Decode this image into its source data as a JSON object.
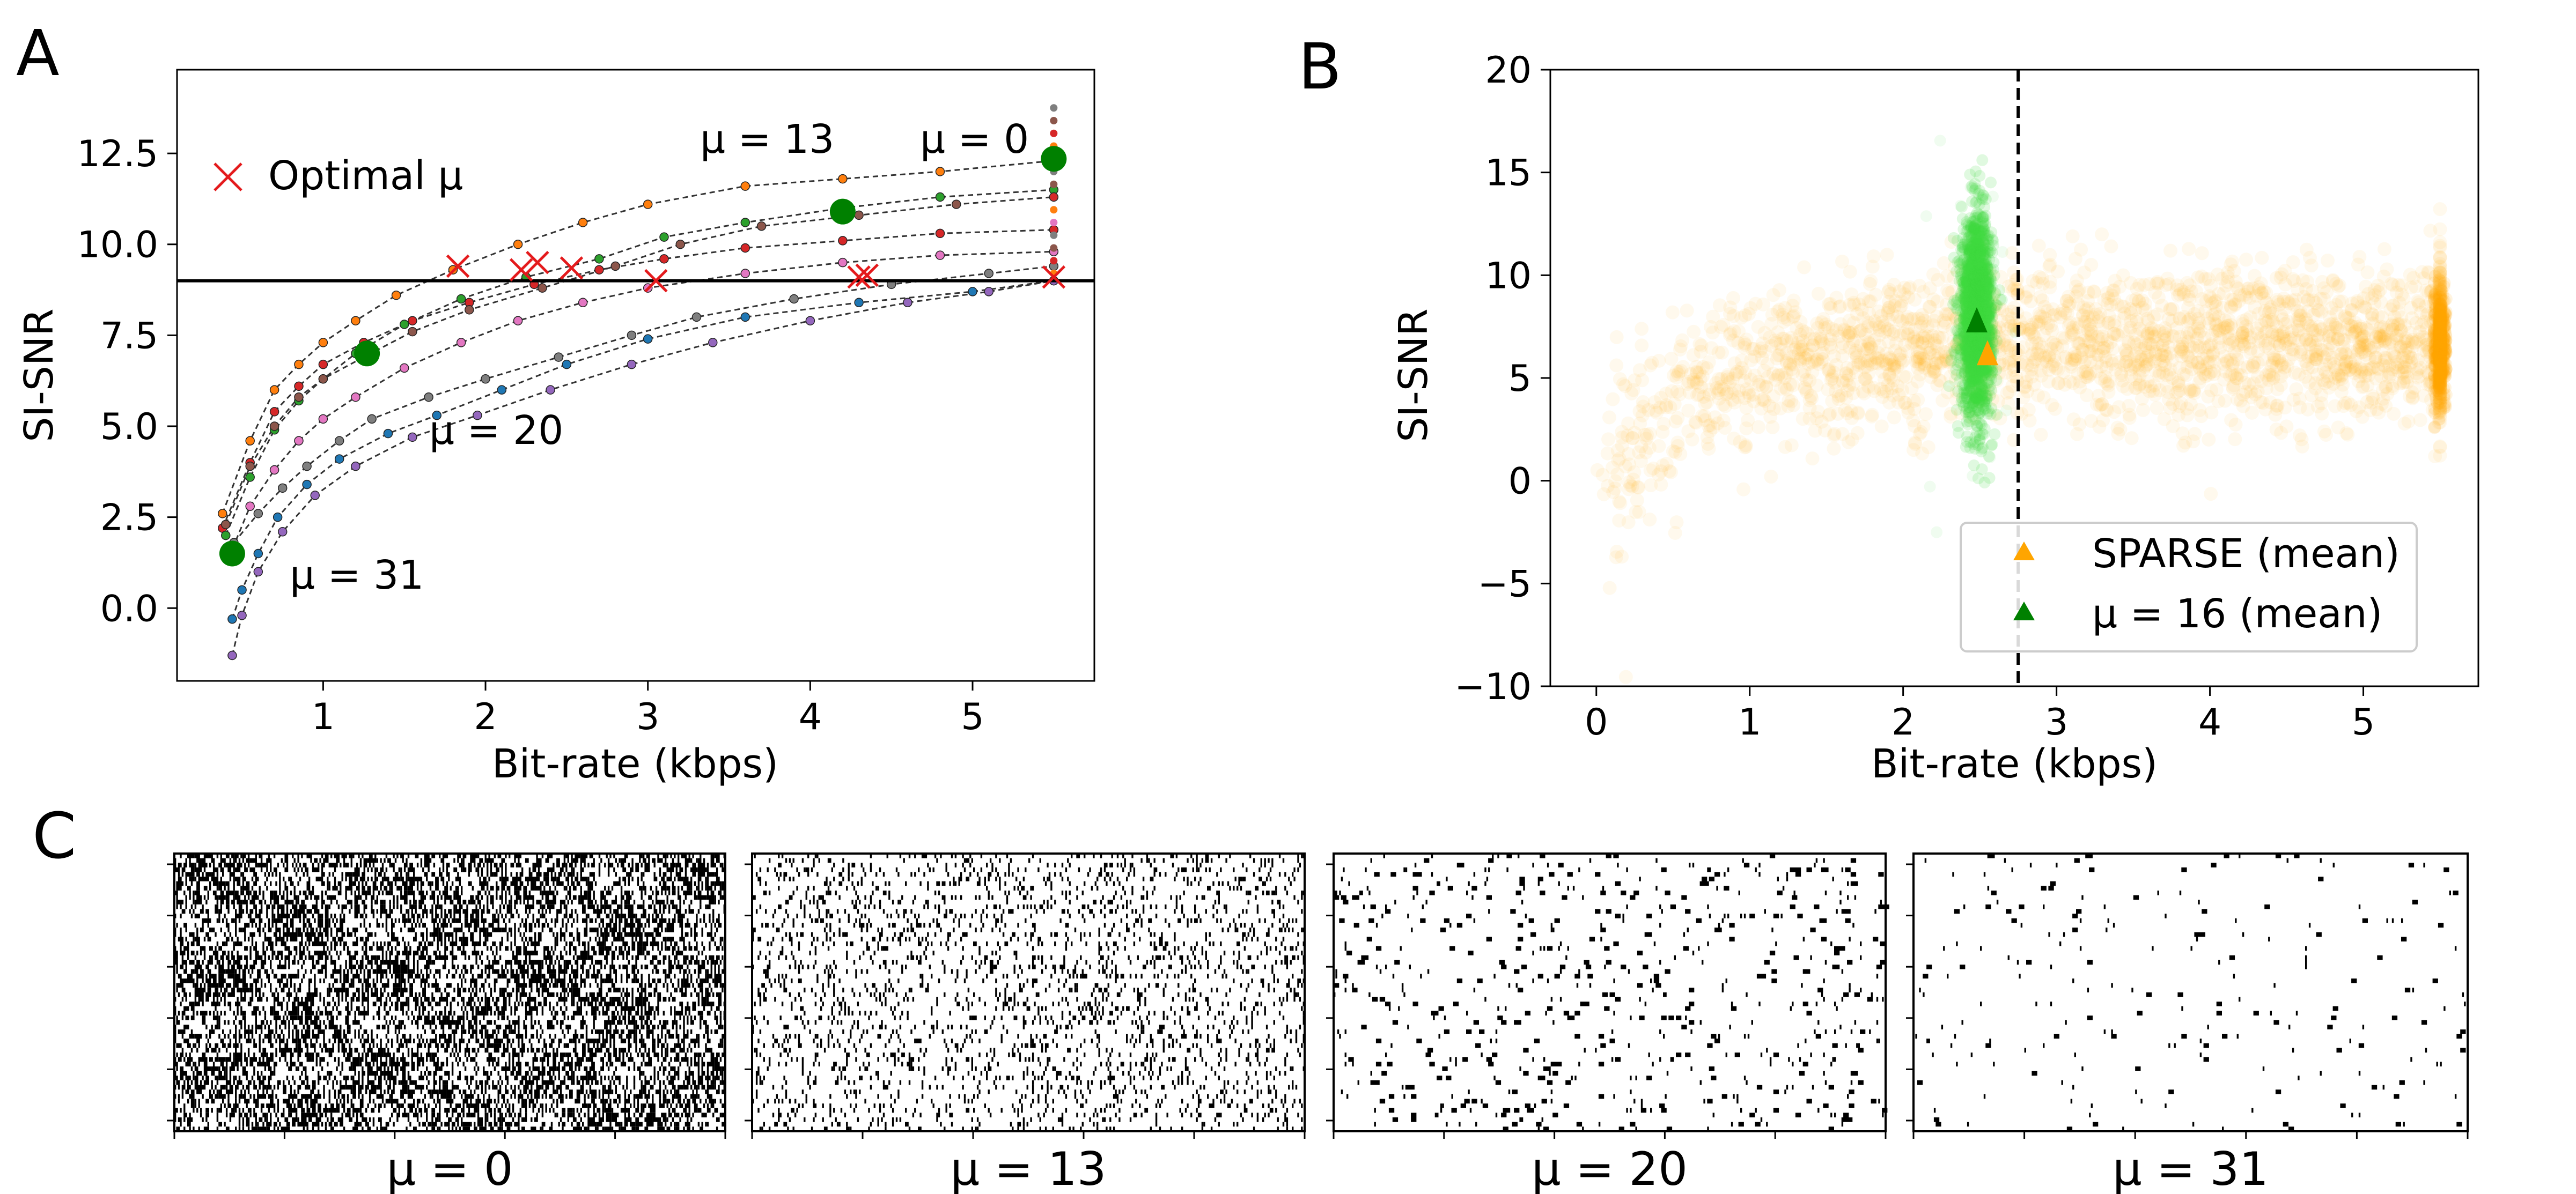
{
  "chart_data": [
    {
      "panel": "A",
      "type": "line",
      "xlabel": "Bit-rate (kbps)",
      "ylabel": "SI-SNR",
      "xlim": [
        0.1,
        5.75
      ],
      "ylim": [
        -2.0,
        14.8
      ],
      "xticks": [
        1,
        2,
        3,
        4,
        5
      ],
      "yticks": [
        0.0,
        2.5,
        5.0,
        7.5,
        10.0,
        12.5
      ],
      "ytick_labels": [
        "0.0",
        "2.5",
        "5.0",
        "7.5",
        "10.0",
        "12.5"
      ],
      "threshold_line": 9.0,
      "legend": {
        "entries": [
          "Optimal μ"
        ],
        "placement": "upper-left"
      },
      "annotations": [
        {
          "text": "μ = 13",
          "x": 3.3,
          "y": 12.6
        },
        {
          "text": "μ = 0",
          "x": 4.6,
          "y": 12.6
        },
        {
          "text": "μ = 20",
          "x": 1.65,
          "y": 4.5
        },
        {
          "text": "μ = 31",
          "x": 0.8,
          "y": 0.7
        }
      ],
      "series": [
        {
          "color": "#ff7f0e",
          "x": [
            0.38,
            0.55,
            0.7,
            0.85,
            1.0,
            1.2,
            1.45,
            1.8,
            2.2,
            2.6,
            3.0,
            3.6,
            4.2,
            4.8,
            5.5
          ],
          "y": [
            2.6,
            4.6,
            6.0,
            6.7,
            7.3,
            7.9,
            8.6,
            9.3,
            10.0,
            10.6,
            11.1,
            11.6,
            11.8,
            12.0,
            12.3
          ]
        },
        {
          "color": "#d62728",
          "x": [
            0.38,
            0.55,
            0.7,
            0.85,
            1.0,
            1.25,
            1.55,
            1.9,
            2.3,
            2.7,
            3.1,
            3.6,
            4.2,
            4.8,
            5.5
          ],
          "y": [
            2.2,
            4.0,
            5.4,
            6.1,
            6.7,
            7.3,
            7.9,
            8.4,
            8.9,
            9.3,
            9.6,
            9.9,
            10.1,
            10.3,
            10.4
          ]
        },
        {
          "color": "#2ca02c",
          "x": [
            0.4,
            0.55,
            0.7,
            0.85,
            1.0,
            1.2,
            1.5,
            1.85,
            2.25,
            2.7,
            3.1,
            3.6,
            4.2,
            4.8,
            5.5
          ],
          "y": [
            2.0,
            3.6,
            4.9,
            5.7,
            6.3,
            7.0,
            7.8,
            8.5,
            9.1,
            9.6,
            10.2,
            10.6,
            11.0,
            11.3,
            11.5
          ]
        },
        {
          "color": "#e377c2",
          "x": [
            0.42,
            0.55,
            0.7,
            0.85,
            1.0,
            1.2,
            1.5,
            1.85,
            2.2,
            2.6,
            3.0,
            3.6,
            4.2,
            4.8,
            5.5
          ],
          "y": [
            1.4,
            2.8,
            3.8,
            4.6,
            5.2,
            5.8,
            6.6,
            7.3,
            7.9,
            8.4,
            8.8,
            9.2,
            9.5,
            9.7,
            9.8
          ]
        },
        {
          "color": "#7f7f7f",
          "x": [
            0.45,
            0.6,
            0.75,
            0.9,
            1.1,
            1.3,
            1.65,
            2.0,
            2.45,
            2.9,
            3.3,
            3.9,
            4.5,
            5.1,
            5.5
          ],
          "y": [
            1.8,
            2.6,
            3.3,
            3.9,
            4.6,
            5.2,
            5.8,
            6.3,
            6.9,
            7.5,
            8.0,
            8.5,
            8.9,
            9.2,
            9.4
          ]
        },
        {
          "color": "#1f77b4",
          "x": [
            0.44,
            0.5,
            0.6,
            0.72,
            0.9,
            1.1,
            1.4,
            1.7,
            2.1,
            2.5,
            3.0,
            3.6,
            4.3,
            5.0,
            5.5
          ],
          "y": [
            -0.3,
            0.5,
            1.5,
            2.5,
            3.4,
            4.1,
            4.8,
            5.3,
            6.0,
            6.7,
            7.4,
            8.0,
            8.4,
            8.7,
            9.0
          ]
        },
        {
          "color": "#9467bd",
          "x": [
            0.44,
            0.5,
            0.6,
            0.75,
            0.95,
            1.2,
            1.55,
            1.95,
            2.4,
            2.9,
            3.4,
            4.0,
            4.6,
            5.1,
            5.5
          ],
          "y": [
            -1.3,
            -0.2,
            1.0,
            2.1,
            3.1,
            3.9,
            4.7,
            5.3,
            6.0,
            6.7,
            7.3,
            7.9,
            8.4,
            8.7,
            9.0
          ]
        },
        {
          "color": "#8c564b",
          "x": [
            0.4,
            0.55,
            0.7,
            0.85,
            1.0,
            1.25,
            1.55,
            1.9,
            2.35,
            2.8,
            3.2,
            3.7,
            4.3,
            4.9,
            5.5
          ],
          "y": [
            2.3,
            3.9,
            5.0,
            5.8,
            6.3,
            6.9,
            7.6,
            8.2,
            8.8,
            9.4,
            10.0,
            10.5,
            10.8,
            11.1,
            11.3
          ]
        }
      ],
      "optimal_mu_points": [
        {
          "x": 1.83,
          "y": 9.4
        },
        {
          "x": 2.22,
          "y": 9.3
        },
        {
          "x": 2.32,
          "y": 9.5
        },
        {
          "x": 2.53,
          "y": 9.35
        },
        {
          "x": 3.05,
          "y": 9.0
        },
        {
          "x": 4.3,
          "y": 9.1
        },
        {
          "x": 4.35,
          "y": 9.15
        },
        {
          "x": 5.5,
          "y": 9.1
        }
      ],
      "highlight_points": [
        {
          "x": 0.44,
          "y": 1.5
        },
        {
          "x": 1.27,
          "y": 7.0
        },
        {
          "x": 4.2,
          "y": 10.9
        },
        {
          "x": 5.5,
          "y": 12.35
        }
      ]
    },
    {
      "panel": "B",
      "type": "scatter",
      "xlabel": "Bit-rate (kbps)",
      "ylabel": "SI-SNR",
      "xlim": [
        -0.3,
        5.75
      ],
      "ylim": [
        -10,
        20
      ],
      "xticks": [
        0,
        1,
        2,
        3,
        4,
        5
      ],
      "yticks": [
        -10,
        -5,
        0,
        5,
        10,
        15,
        20
      ],
      "ytick_labels": [
        "−10",
        "−5",
        "0",
        "5",
        "10",
        "15",
        "20"
      ],
      "vline_x": 2.75,
      "legend": {
        "placement": "lower-right"
      },
      "series": [
        {
          "name": "SPARSE (mean)",
          "color": "#ffa500",
          "mean": {
            "x": 2.55,
            "y": 5.9
          }
        },
        {
          "name": "μ = 16 (mean)",
          "color": "#008000",
          "mean": {
            "x": 2.48,
            "y": 7.5
          }
        }
      ]
    },
    {
      "panel": "C",
      "type": "heatmap",
      "raster_labels": [
        "μ = 0",
        "μ = 13",
        "μ = 20",
        "μ = 31"
      ],
      "spike_density": [
        0.55,
        0.15,
        0.04,
        0.012
      ]
    }
  ],
  "panel_labels": [
    "A",
    "B",
    "C"
  ]
}
